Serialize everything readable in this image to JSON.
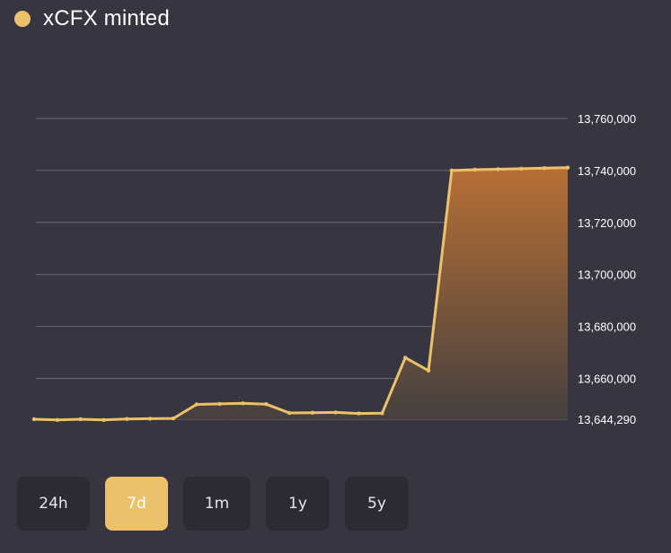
{
  "header": {
    "title": "xCFX minted",
    "legend_color": "#ECC16B"
  },
  "range_buttons": [
    {
      "label": "24h",
      "active": false
    },
    {
      "label": "7d",
      "active": true
    },
    {
      "label": "1m",
      "active": false
    },
    {
      "label": "1y",
      "active": false
    },
    {
      "label": "5y",
      "active": false
    }
  ],
  "chart_data": {
    "type": "area",
    "title": "xCFX minted",
    "y_axis_position": "right",
    "grid": true,
    "ylim": [
      13644290,
      13760000
    ],
    "y_ticks": [
      13760000,
      13740000,
      13720000,
      13700000,
      13680000,
      13660000,
      13644290
    ],
    "y_tick_labels": [
      "13,760,000",
      "13,740,000",
      "13,720,000",
      "13,700,000",
      "13,680,000",
      "13,660,000",
      "13,644,290"
    ],
    "series": [
      {
        "color": "#ECC16B",
        "values": [
          13644290,
          13644000,
          13644290,
          13644000,
          13644400,
          13644500,
          13644600,
          13650000,
          13650200,
          13650400,
          13650100,
          13646700,
          13646800,
          13646900,
          13646500,
          13646600,
          13668000,
          13663000,
          13740000,
          13740300,
          13740500,
          13740700,
          13740900,
          13741100
        ]
      }
    ],
    "colors": {
      "line": "#ECC16B",
      "fill_top": "#B76F35",
      "fill_bottom": "#45403F",
      "grid": "#6b6974",
      "tick_label": "#ffffff"
    }
  }
}
